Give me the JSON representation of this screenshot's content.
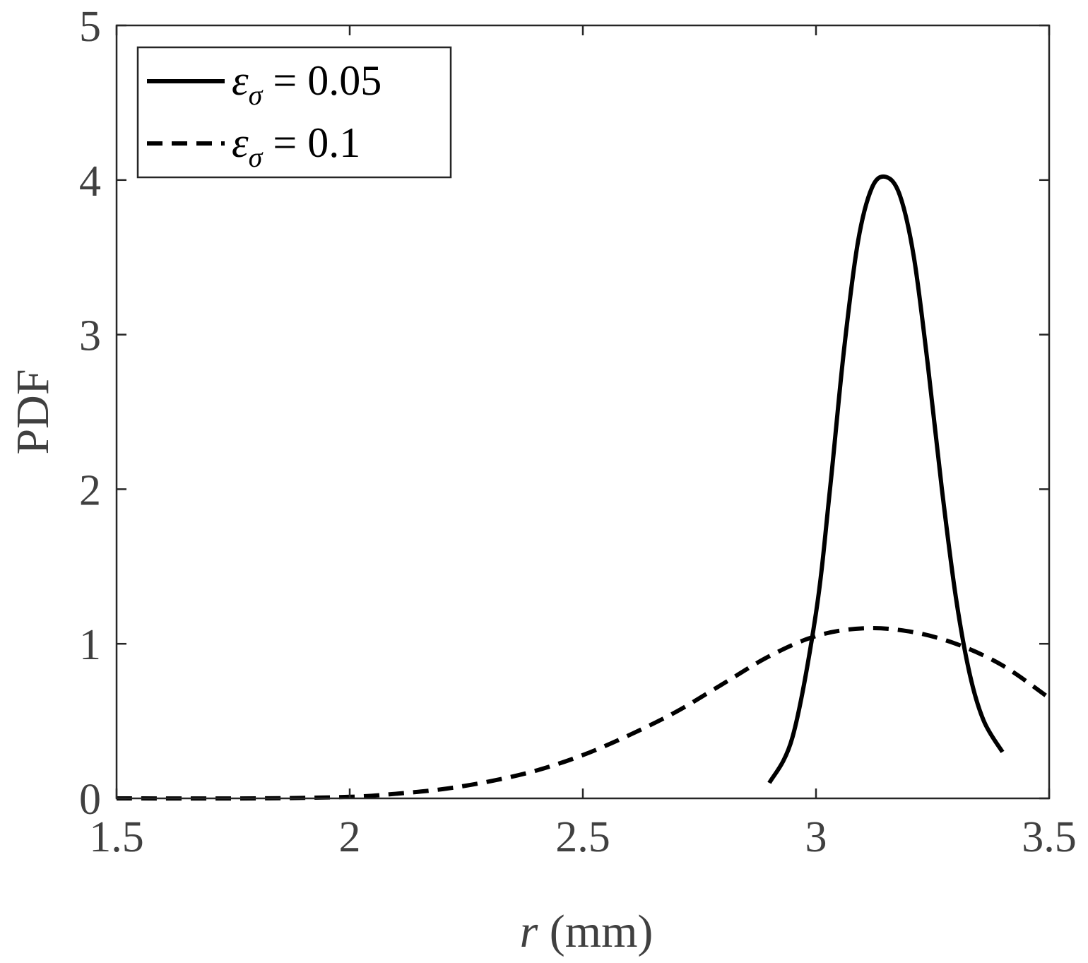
{
  "chart_data": {
    "type": "line",
    "xlabel_var": "r",
    "xlabel_unit": " (mm)",
    "ylabel": "PDF",
    "xlim": [
      1.5,
      3.5
    ],
    "ylim": [
      0,
      5
    ],
    "xticks": [
      1.5,
      2,
      2.5,
      3,
      3.5
    ],
    "xtick_labels": [
      "1.5",
      "2",
      "2.5",
      "3",
      "3.5"
    ],
    "yticks": [
      0,
      1,
      2,
      3,
      4,
      5
    ],
    "ytick_labels": [
      "0",
      "1",
      "2",
      "3",
      "4",
      "5"
    ],
    "grid": false,
    "legend_position": "top-left",
    "series": [
      {
        "name": "ε_σ = 0.05",
        "legend_symbol": "ε",
        "legend_subscript": "σ",
        "legend_value": " = 0.05",
        "style": "solid",
        "color": "#000000",
        "points": [
          [
            2.9,
            0.1
          ],
          [
            2.95,
            0.4
          ],
          [
            3.0,
            1.2
          ],
          [
            3.03,
            2.0
          ],
          [
            3.06,
            2.9
          ],
          [
            3.09,
            3.6
          ],
          [
            3.12,
            3.95
          ],
          [
            3.15,
            4.02
          ],
          [
            3.18,
            3.9
          ],
          [
            3.21,
            3.5
          ],
          [
            3.24,
            2.8
          ],
          [
            3.27,
            2.0
          ],
          [
            3.3,
            1.3
          ],
          [
            3.33,
            0.8
          ],
          [
            3.36,
            0.5
          ],
          [
            3.4,
            0.3
          ]
        ]
      },
      {
        "name": "ε_σ = 0.1",
        "legend_symbol": "ε",
        "legend_subscript": "σ",
        "legend_value": " = 0.1",
        "style": "dashed",
        "color": "#000000",
        "points": [
          [
            1.5,
            0.0
          ],
          [
            1.8,
            0.0
          ],
          [
            2.0,
            0.01
          ],
          [
            2.1,
            0.03
          ],
          [
            2.2,
            0.06
          ],
          [
            2.3,
            0.11
          ],
          [
            2.4,
            0.18
          ],
          [
            2.5,
            0.28
          ],
          [
            2.6,
            0.41
          ],
          [
            2.7,
            0.56
          ],
          [
            2.8,
            0.74
          ],
          [
            2.9,
            0.92
          ],
          [
            3.0,
            1.05
          ],
          [
            3.1,
            1.1
          ],
          [
            3.2,
            1.08
          ],
          [
            3.3,
            1.0
          ],
          [
            3.4,
            0.86
          ],
          [
            3.5,
            0.65
          ]
        ]
      }
    ]
  }
}
